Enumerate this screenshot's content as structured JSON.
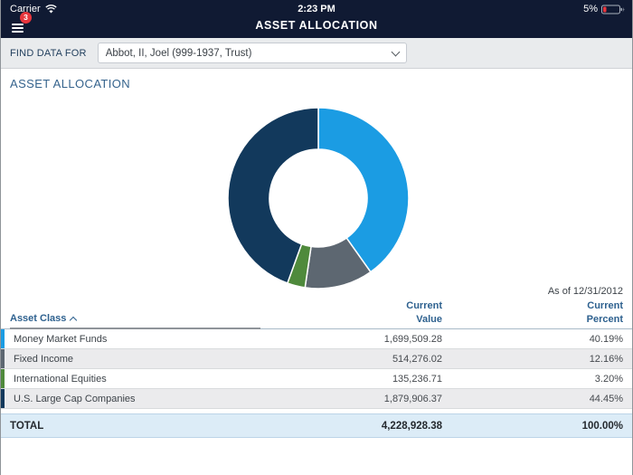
{
  "status_bar": {
    "carrier": "Carrier",
    "time": "2:23 PM",
    "battery_percent": "5%"
  },
  "nav": {
    "title": "ASSET ALLOCATION",
    "menu_badge": "3"
  },
  "find_bar": {
    "label": "FIND DATA FOR",
    "selected": "Abbot, II, Joel (999-1937, Trust)"
  },
  "section": {
    "title": "ASSET ALLOCATION",
    "as_of": "As of 12/31/2012"
  },
  "chart_data": {
    "type": "pie",
    "subtype": "donut",
    "categories": [
      "Money Market Funds",
      "Fixed Income",
      "International Equities",
      "U.S. Large Cap Companies"
    ],
    "values": [
      40.19,
      12.16,
      3.2,
      44.45
    ],
    "unit": "percent",
    "colors": [
      "#1b9ce3",
      "#5d6771",
      "#4f8a3c",
      "#12395c"
    ],
    "start_angle_deg": 0,
    "direction": "clockwise",
    "inner_radius_ratio": 0.54,
    "legend": "none",
    "data_labels": "none",
    "title": ""
  },
  "table": {
    "headers": {
      "asset_class": "Asset Class",
      "current_value": "Current Value",
      "current_percent": "Current Percent"
    },
    "sort": {
      "column": "Asset Class",
      "direction": "ascending"
    },
    "rows": [
      {
        "asset_class": "Money Market Funds",
        "current_value": "1,699,509.28",
        "current_percent": "40.19%",
        "color": "#1b9ce3"
      },
      {
        "asset_class": "Fixed Income",
        "current_value": "514,276.02",
        "current_percent": "12.16%",
        "color": "#5d6771"
      },
      {
        "asset_class": "International Equities",
        "current_value": "135,236.71",
        "current_percent": "3.20%",
        "color": "#4f8a3c"
      },
      {
        "asset_class": "U.S. Large Cap Companies",
        "current_value": "1,879,906.37",
        "current_percent": "44.45%",
        "color": "#12395c"
      }
    ],
    "total": {
      "label": "TOTAL",
      "current_value": "4,228,928.38",
      "current_percent": "100.00%"
    }
  }
}
